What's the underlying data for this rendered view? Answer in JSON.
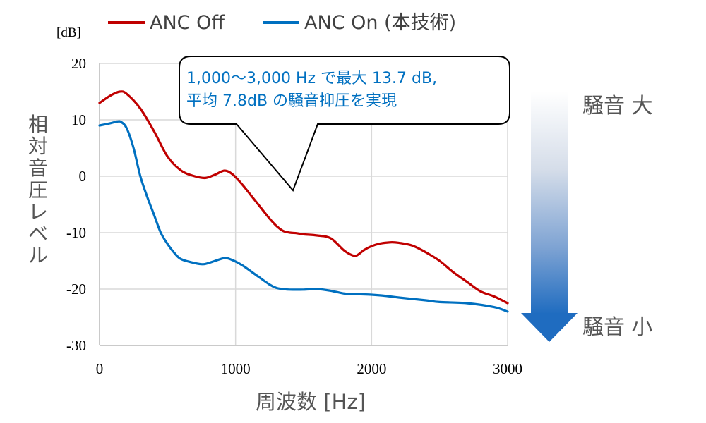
{
  "chart_data": {
    "type": "line",
    "xlabel": "周波数 [Hz]",
    "ylabel": "相対音圧レベル",
    "yunit": "[dB]",
    "xlim": [
      0,
      3000
    ],
    "ylim": [
      -30,
      20
    ],
    "xticks": [
      "0",
      "1000",
      "2000",
      "3000"
    ],
    "yticks": [
      "20",
      "10",
      "0",
      "-10",
      "-20",
      "-30"
    ],
    "grid": true,
    "legend_position": "top",
    "series": [
      {
        "name": "ANC Off",
        "color": "#C00000",
        "x": [
          0,
          80,
          150,
          200,
          300,
          400,
          500,
          600,
          700,
          780,
          850,
          920,
          980,
          1050,
          1150,
          1250,
          1300,
          1350,
          1400,
          1450,
          1500,
          1600,
          1700,
          1800,
          1870,
          1900,
          1950,
          2000,
          2050,
          2100,
          2150,
          2200,
          2300,
          2400,
          2500,
          2600,
          2700,
          2800,
          2900,
          3000
        ],
        "values": [
          13,
          14.3,
          15,
          14.6,
          12,
          8,
          3.5,
          1,
          0,
          -0.3,
          0.3,
          1,
          0.3,
          -1.5,
          -4.5,
          -7.5,
          -8.8,
          -9.7,
          -10,
          -10.1,
          -10.3,
          -10.5,
          -11,
          -13.2,
          -14.1,
          -13.9,
          -13,
          -12.4,
          -12,
          -11.8,
          -11.7,
          -11.8,
          -12.3,
          -13.5,
          -15,
          -17,
          -18.7,
          -20.4,
          -21.3,
          -22.5
        ]
      },
      {
        "name": "ANC On (本技術)",
        "color": "#0070C0",
        "x": [
          0,
          80,
          130,
          160,
          200,
          250,
          300,
          350,
          400,
          450,
          500,
          550,
          600,
          700,
          760,
          800,
          850,
          920,
          970,
          1050,
          1150,
          1250,
          1300,
          1350,
          1400,
          1500,
          1600,
          1700,
          1800,
          1900,
          2000,
          2100,
          2200,
          2400,
          2500,
          2700,
          2900,
          3000
        ],
        "values": [
          9,
          9.4,
          9.7,
          9.6,
          8.5,
          5,
          0,
          -3.6,
          -6.8,
          -10,
          -12,
          -13.6,
          -14.7,
          -15.4,
          -15.6,
          -15.4,
          -15,
          -14.5,
          -14.8,
          -15.8,
          -17.5,
          -19.2,
          -19.8,
          -20,
          -20.1,
          -20.1,
          -20,
          -20.3,
          -20.8,
          -20.9,
          -21,
          -21.2,
          -21.5,
          -22,
          -22.3,
          -22.5,
          -23.2,
          -24
        ]
      }
    ],
    "annotation": {
      "line1": "1,000～3,000 Hz で最大 13.7 dB,",
      "line2": "平均 7.8dB の騒音抑圧を実現"
    },
    "side_labels": {
      "top": "騒音 大",
      "bottom": "騒音 小"
    }
  }
}
